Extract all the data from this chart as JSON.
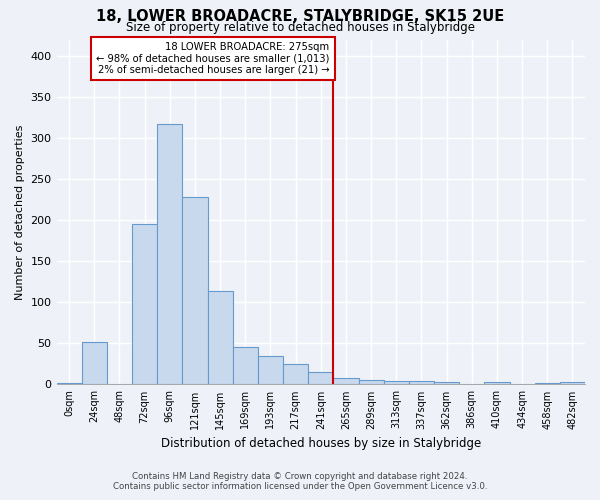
{
  "title": "18, LOWER BROADACRE, STALYBRIDGE, SK15 2UE",
  "subtitle": "Size of property relative to detached houses in Stalybridge",
  "xlabel": "Distribution of detached houses by size in Stalybridge",
  "ylabel": "Number of detached properties",
  "bar_color": "#c8d9ee",
  "bar_edge_color": "#6699cc",
  "background_color": "#eef2f8",
  "grid_color": "#d0d8e8",
  "categories": [
    "0sqm",
    "24sqm",
    "48sqm",
    "72sqm",
    "96sqm",
    "121sqm",
    "145sqm",
    "169sqm",
    "193sqm",
    "217sqm",
    "241sqm",
    "265sqm",
    "289sqm",
    "313sqm",
    "337sqm",
    "362sqm",
    "386sqm",
    "410sqm",
    "434sqm",
    "458sqm",
    "482sqm"
  ],
  "values": [
    2,
    52,
    0,
    196,
    318,
    228,
    114,
    46,
    35,
    25,
    15,
    8,
    6,
    4,
    4,
    3,
    0,
    3,
    0,
    2,
    3
  ],
  "annotation_title": "18 LOWER BROADACRE: 275sqm",
  "annotation_line1": "← 98% of detached houses are smaller (1,013)",
  "annotation_line2": "2% of semi-detached houses are larger (21) →",
  "vline_index": 11,
  "footnote1": "Contains HM Land Registry data © Crown copyright and database right 2024.",
  "footnote2": "Contains public sector information licensed under the Open Government Licence v3.0.",
  "ylim": [
    0,
    420
  ],
  "yticks": [
    0,
    50,
    100,
    150,
    200,
    250,
    300,
    350,
    400
  ]
}
